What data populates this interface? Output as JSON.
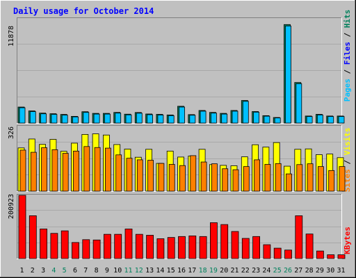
{
  "chart_data": [
    {
      "type": "bar",
      "panel": "top",
      "title": "Daily usage for October 2014",
      "ymax_label": "11878",
      "ylim": [
        0,
        11878
      ],
      "legend": {
        "pages": "Pages",
        "files": "Files",
        "hits": "Hits",
        "sep": " / "
      },
      "categories": [
        "1",
        "2",
        "3",
        "4",
        "5",
        "6",
        "7",
        "8",
        "9",
        "10",
        "11",
        "12",
        "13",
        "14",
        "15",
        "16",
        "17",
        "18",
        "19",
        "20",
        "21",
        "22",
        "23",
        "24",
        "25",
        "26",
        "27",
        "28",
        "29",
        "30",
        "31"
      ],
      "weekend": [
        4,
        5,
        11,
        12,
        18,
        19,
        25,
        26
      ],
      "series": [
        {
          "name": "Hits",
          "values": [
            1820,
            1380,
            1130,
            1060,
            980,
            760,
            1290,
            1100,
            1100,
            1210,
            1010,
            1200,
            1030,
            990,
            920,
            1910,
            960,
            1430,
            1210,
            1100,
            1430,
            2570,
            1310,
            840,
            630,
            11220,
            4620,
            800,
            990,
            800,
            800
          ]
        },
        {
          "name": "Files",
          "values": [
            1740,
            1300,
            1050,
            980,
            900,
            700,
            1210,
            1020,
            1020,
            1130,
            930,
            1120,
            950,
            910,
            840,
            1820,
            890,
            1350,
            1130,
            1020,
            1350,
            2470,
            1240,
            780,
            580,
            11060,
            4480,
            740,
            920,
            740,
            740
          ]
        },
        {
          "name": "Pages",
          "values": [
            0,
            0,
            0,
            0,
            0,
            0,
            0,
            0,
            0,
            0,
            0,
            0,
            0,
            0,
            0,
            0,
            0,
            0,
            0,
            0,
            0,
            0,
            0,
            0,
            0,
            0,
            0,
            0,
            0,
            0,
            0
          ]
        }
      ]
    },
    {
      "type": "bar",
      "panel": "middle",
      "ymax_label": "326",
      "ylim": [
        0,
        326
      ],
      "legend": {
        "sites": "Sites",
        "visits": "Visits",
        "sep": " / "
      },
      "series": [
        {
          "name": "Visits",
          "values": [
            218,
            263,
            236,
            261,
            201,
            242,
            286,
            289,
            283,
            235,
            212,
            171,
            211,
            140,
            202,
            172,
            177,
            211,
            134,
            130,
            128,
            173,
            234,
            222,
            245,
            126,
            211,
            213,
            184,
            187,
            169
          ]
        },
        {
          "name": "Sites",
          "values": [
            207,
            196,
            219,
            209,
            191,
            202,
            225,
            220,
            217,
            183,
            166,
            158,
            156,
            140,
            135,
            129,
            179,
            147,
            138,
            113,
            108,
            124,
            158,
            135,
            139,
            87,
            134,
            138,
            124,
            104,
            124
          ]
        }
      ]
    },
    {
      "type": "bar",
      "panel": "bottom",
      "ymax_label": "200923",
      "ylim": [
        0,
        200923
      ],
      "legend": {
        "kbytes": "KBytes"
      },
      "series": [
        {
          "name": "KBytes",
          "values": [
            200923,
            136000,
            94000,
            80000,
            88000,
            51000,
            60000,
            59000,
            77000,
            77000,
            94000,
            77000,
            74000,
            63000,
            67000,
            70000,
            72000,
            70000,
            114000,
            108000,
            86000,
            64000,
            70000,
            44000,
            33000,
            27000,
            136000,
            78000,
            24000,
            12000,
            12000
          ]
        }
      ]
    }
  ],
  "colors": {
    "background": "#c0c0c0",
    "title": "#0000ff",
    "hits": "#00805c",
    "files": "#0000ff",
    "pages": "#00c0ff",
    "visits": "#ffff00",
    "sites": "#ff8000",
    "kbytes": "#ff0000",
    "weekend_label": "#00805c",
    "weekday_label": "#000000"
  }
}
